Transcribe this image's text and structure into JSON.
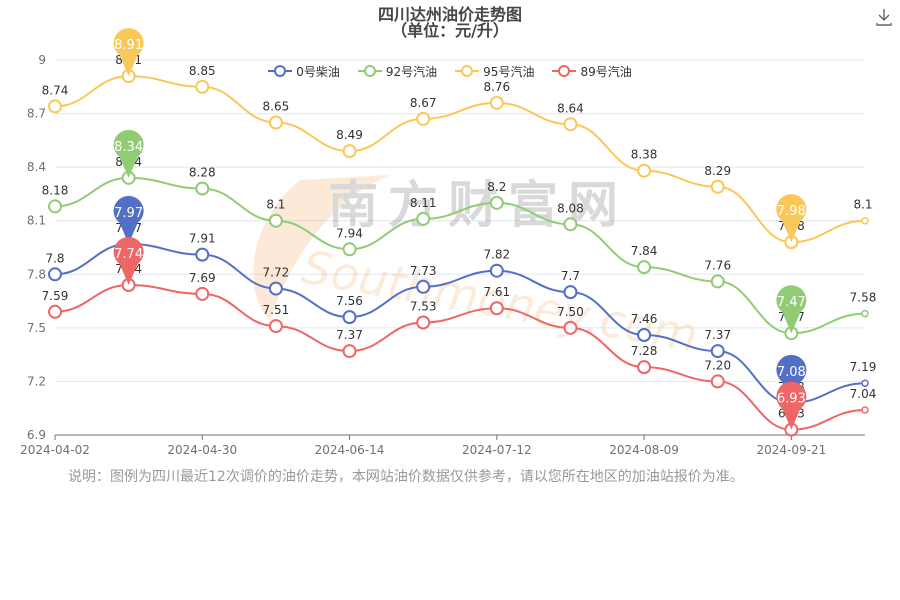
{
  "title": {
    "line1": "四川达州油价走势图",
    "line2": "（单位：元/升）"
  },
  "toolbar": {
    "download_icon": "download-icon"
  },
  "watermark": {
    "cn": "南方财富网",
    "en": "Southmoney.com"
  },
  "note": "说明：图例为四川最近12次调价的油价走势，本网站油价数据仅供参考，请以您所在地区的加油站报价为准。",
  "chart_data": {
    "type": "line",
    "smooth": true,
    "x_ticks": [
      "2024-04-02",
      "2024-04-30",
      "2024-06-14",
      "2024-07-12",
      "2024-08-09",
      "2024-09-21"
    ],
    "ylim": [
      6.9,
      9
    ],
    "yticks": [
      "6.9",
      "7.2",
      "7.5",
      "7.8",
      "8.1",
      "8.4",
      "8.7",
      "9"
    ],
    "legend_position": "top-center",
    "series": [
      {
        "name": "0号柴油",
        "color": "#5470c6",
        "values": [
          7.8,
          7.97,
          7.91,
          7.72,
          7.56,
          7.73,
          7.82,
          7.7,
          7.46,
          7.37,
          7.08,
          7.19
        ],
        "labels": [
          "7.8",
          "7.97",
          "7.91",
          "7.72",
          "7.56",
          "7.73",
          "7.82",
          "7.7",
          "7.46",
          "7.37",
          "7.08",
          "7.19"
        ],
        "max": "7.97",
        "min": "7.08"
      },
      {
        "name": "92号汽油",
        "color": "#91cc75",
        "values": [
          8.18,
          8.34,
          8.28,
          8.1,
          7.94,
          8.11,
          8.2,
          8.08,
          7.84,
          7.76,
          7.47,
          7.58
        ],
        "labels": [
          "8.18",
          "8.34",
          "8.28",
          "8.1",
          "7.94",
          "8.11",
          "8.2",
          "8.08",
          "7.84",
          "7.76",
          "7.47",
          "7.58"
        ],
        "max": "8.34",
        "min": "7.47"
      },
      {
        "name": "95号汽油",
        "color": "#fac858",
        "values": [
          8.74,
          8.91,
          8.85,
          8.65,
          8.49,
          8.67,
          8.76,
          8.64,
          8.38,
          8.29,
          7.98,
          8.1
        ],
        "labels": [
          "8.74",
          "8.91",
          "8.85",
          "8.65",
          "8.49",
          "8.67",
          "8.76",
          "8.64",
          "8.38",
          "8.29",
          "7.98",
          "8.1"
        ],
        "max": "8.91",
        "min": "7.98"
      },
      {
        "name": "89号汽油",
        "color": "#ee6666",
        "values": [
          7.59,
          7.74,
          7.69,
          7.51,
          7.37,
          7.53,
          7.61,
          7.5,
          7.28,
          7.2,
          6.93,
          7.04
        ],
        "labels": [
          "7.59",
          "7.74",
          "7.69",
          "7.51",
          "7.37",
          "7.53",
          "7.61",
          "7.50",
          "7.28",
          "7.20",
          "6.93",
          "7.04"
        ],
        "max": "7.74",
        "min": "6.93"
      }
    ]
  }
}
